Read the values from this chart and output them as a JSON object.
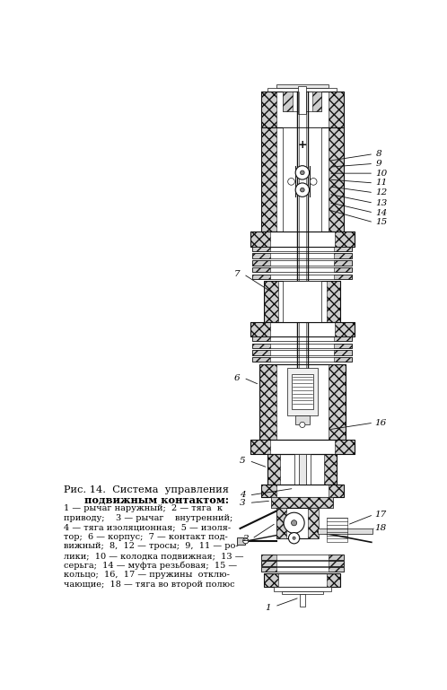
{
  "fig_width": 4.98,
  "fig_height": 7.69,
  "dpi": 100,
  "caption_title_line1": "Рис. 14.  Система  управления",
  "caption_title_line2": "подвижным контактом:",
  "caption_body_lines": [
    "1 — рычаг наружный;  2 — тяга  к",
    "приводу;    3 — рычаг    внутренний;",
    "4 — тяга изоляционная;  5 — изоля-",
    "тор;  6 — корпус;  7 — контакт под-",
    "вижный;  8,  12 — тросы;  9,  11 — ро-",
    "лики;  10 — колодка подвижная;  13 —",
    "серьга;  14 — муфта резьбовая;  15 —",
    "кольцо;  16,  17 — пружины  отклю-",
    "чающие;  18 — тяга во второй полюс"
  ]
}
